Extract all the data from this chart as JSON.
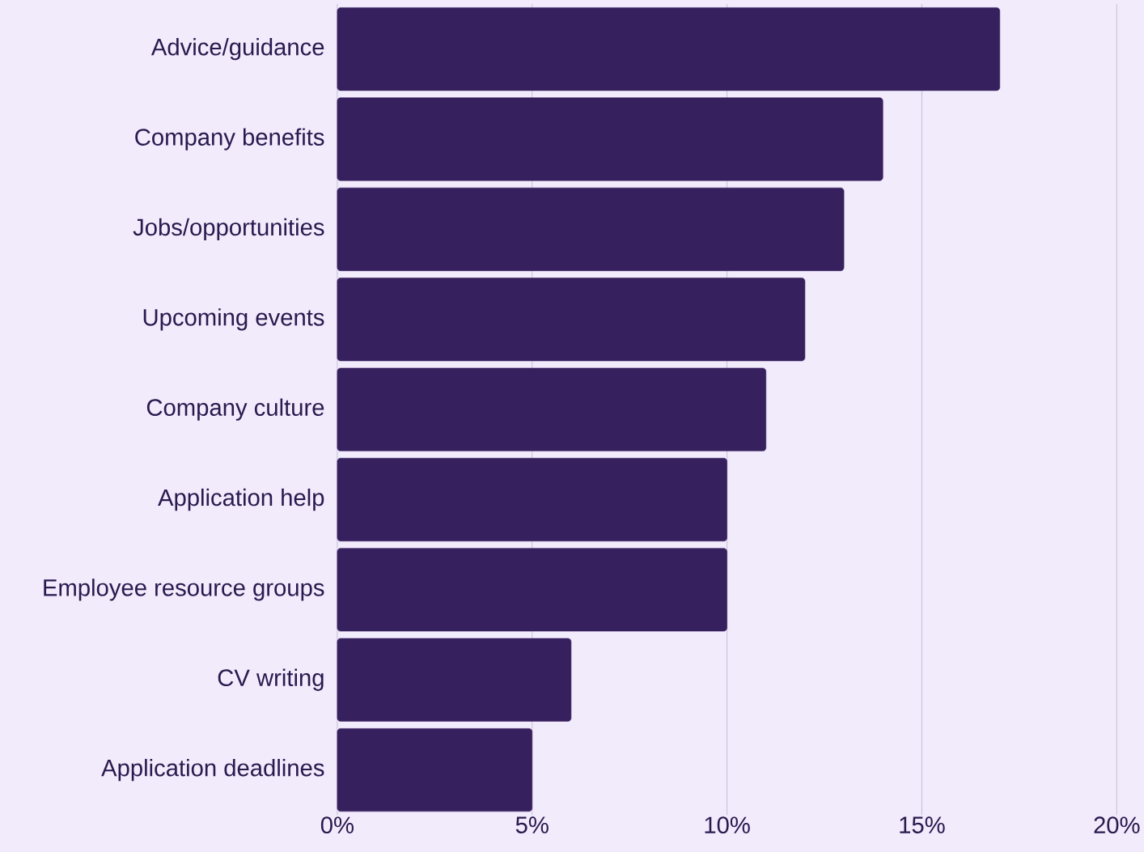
{
  "chart_data": {
    "type": "bar",
    "orientation": "horizontal",
    "color": "#37205e",
    "grid": "x",
    "categories": [
      "Advice/guidance",
      "Company benefits",
      "Jobs/opportunities",
      "Upcoming events",
      "Company culture",
      "Application help",
      "Employee resource groups",
      "CV writing",
      "Application deadlines"
    ],
    "values": [
      17,
      14,
      13,
      12,
      11,
      10,
      10,
      6,
      5
    ],
    "xlim": [
      0,
      20
    ],
    "xticks": [
      {
        "value": 0,
        "label": "0%"
      },
      {
        "value": 5,
        "label": "5%"
      },
      {
        "value": 10,
        "label": "10%"
      },
      {
        "value": 15,
        "label": "15%"
      },
      {
        "value": 20,
        "label": "20%"
      }
    ]
  }
}
